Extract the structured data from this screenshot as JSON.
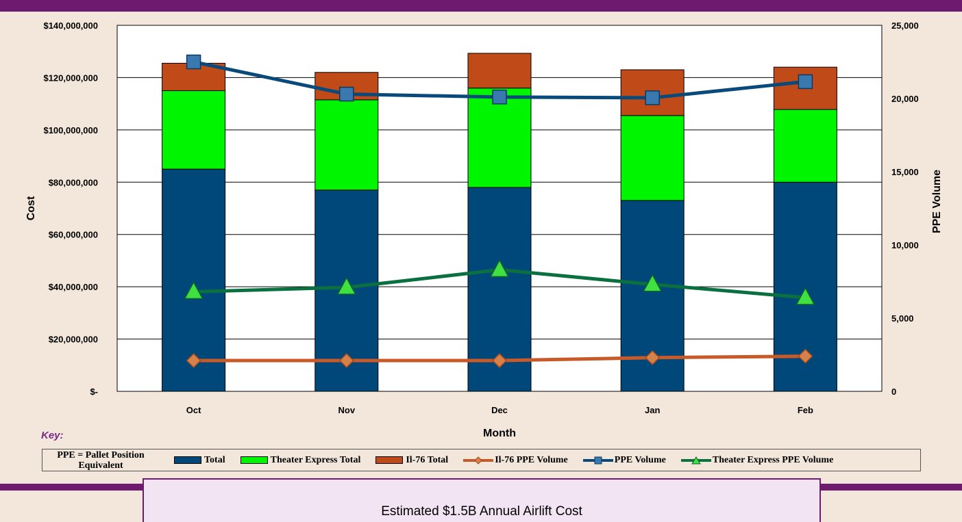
{
  "colors": {
    "total": "#00487a",
    "theater_express_total": "#00f500",
    "il76_total": "#c04a18",
    "il76_ppe_volume": "#c85a2a",
    "ppe_volume": "#0a4a7a",
    "theater_express_ppe_volume": "#0a7040",
    "plot_background": "#ffffff",
    "band": "#6e1a6e"
  },
  "chart_data": {
    "type": "bar",
    "stacked": true,
    "categories": [
      "Oct",
      "Nov",
      "Dec",
      "Jan",
      "Feb"
    ],
    "xlabel": "Month",
    "ylabel": "Cost",
    "y2label": "PPE Volume",
    "ylim": [
      0,
      140000000
    ],
    "y2lim": [
      0,
      25000
    ],
    "grid": true,
    "y_ticks": [
      "$-",
      "$20,000,000",
      "$40,000,000",
      "$60,000,000",
      "$80,000,000",
      "$100,000,000",
      "$120,000,000",
      "$140,000,000"
    ],
    "y2_ticks": [
      "0",
      "5,000",
      "10,000",
      "15,000",
      "20,000",
      "25,000"
    ],
    "bar_series": [
      {
        "name": "Total",
        "values": [
          85000000,
          77000000,
          78000000,
          73000000,
          80000000
        ]
      },
      {
        "name": "Theater Express Total",
        "values": [
          30000000,
          34500000,
          38000000,
          32500000,
          27800000
        ]
      },
      {
        "name": "Il-76 Total",
        "values": [
          10500000,
          10500000,
          13300000,
          17500000,
          16200000
        ]
      }
    ],
    "line_series": [
      {
        "name": "Il-76 PPE Volume",
        "axis": "right",
        "marker": "diamond",
        "values": [
          2100,
          2100,
          2100,
          2300,
          2400
        ]
      },
      {
        "name": "PPE Volume",
        "axis": "right",
        "marker": "square",
        "values": [
          22500,
          20300,
          20100,
          20050,
          21150
        ]
      },
      {
        "name": "Theater Express PPE Volume",
        "axis": "right",
        "marker": "triangle",
        "values": [
          6800,
          7100,
          8300,
          7300,
          6400
        ]
      }
    ]
  },
  "key": {
    "label": "Key:",
    "ppe_definition_line1": "PPE = Pallet Position",
    "ppe_definition_line2": "Equivalent",
    "items": [
      "Total",
      "Theater Express Total",
      "Il-76 Total",
      "Il-76 PPE Volume",
      "PPE Volume",
      "Theater Express PPE Volume"
    ]
  },
  "callout": "Estimated $1.5B Annual Airlift Cost"
}
